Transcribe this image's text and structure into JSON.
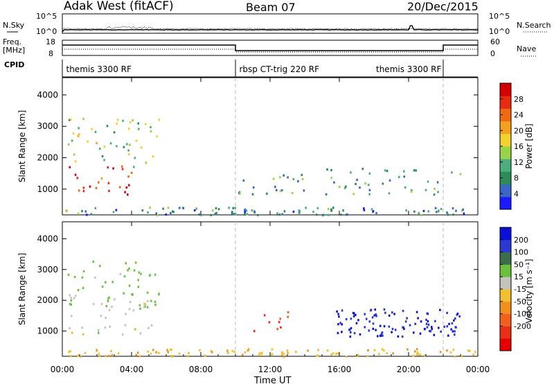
{
  "header": {
    "radar": "Adak West (fitACF)",
    "beam": "Beam 07",
    "date": "20/Dec/2015"
  },
  "noise_panel": {
    "left_label": "N.Sky",
    "right_label": "N.Search",
    "ticks": [
      "10^5",
      "10^0"
    ],
    "ylim_log10": [
      0,
      5
    ]
  },
  "freq_panel": {
    "left_label_1": "Freq.",
    "left_label_2": "[MHz]",
    "right_label": "Nave",
    "left_ticks": [
      18,
      8
    ],
    "right_ticks": [
      60,
      0
    ]
  },
  "cpid": {
    "label": "CPID",
    "segments": [
      {
        "name": "themis 3300 RF",
        "start": "00:00",
        "end": "10:00"
      },
      {
        "name": "rbsp CT-trig 220 RF",
        "start": "10:00",
        "end": "22:00"
      },
      {
        "name": "themis 3300 RF",
        "start": "22:00",
        "end": "24:00"
      }
    ],
    "label_positions_h": [
      0.1,
      10.1,
      18.0
    ]
  },
  "chart_data": [
    {
      "type": "heatmap",
      "title": "Power",
      "ylabel": "Slant Range [km]",
      "ylim": [
        180,
        4550
      ],
      "yticks": [
        1000,
        2000,
        3000,
        4000
      ],
      "colorbar": {
        "label": "Power [dB]",
        "ticks": [
          4,
          8,
          12,
          16,
          20,
          24,
          28
        ],
        "range": [
          0,
          32
        ],
        "colors": [
          "#1a1aff",
          "#3a66c4",
          "#2e8b57",
          "#4cae7c",
          "#9ad24a",
          "#f2d22e",
          "#f2a01e",
          "#f06a14",
          "#e82a12",
          "#d40000"
        ]
      },
      "regions": [
        {
          "t": [
            0.3,
            4.2
          ],
          "r": [
            780,
            1850
          ],
          "value": 27
        },
        {
          "t": [
            0.3,
            5.6
          ],
          "r": [
            1700,
            3300
          ],
          "value": 14
        },
        {
          "t": [
            10.0,
            23.0
          ],
          "r": [
            850,
            1700
          ],
          "value": 10
        },
        {
          "t": [
            0.0,
            24.0
          ],
          "r": [
            200,
            450
          ],
          "value": 8
        }
      ]
    },
    {
      "type": "heatmap",
      "title": "Velocity",
      "xlabel": "Time UT",
      "ylabel": "Slant Range [km]",
      "ylim": [
        180,
        4550
      ],
      "yticks": [
        1000,
        2000,
        3000,
        4000
      ],
      "xticks": [
        "00:00",
        "04:00",
        "08:00",
        "12:00",
        "16:00",
        "20:00",
        "00:00"
      ],
      "xlim_hours": [
        0,
        24
      ],
      "colorbar": {
        "label": "Velocity [m s⁻¹]",
        "ticks": [
          200,
          100,
          50,
          15,
          -15,
          -50,
          -100,
          -200
        ],
        "colors": [
          "#0a10d8",
          "#2a3ad0",
          "#3a6e4a",
          "#6cc040",
          "#c4c4bc",
          "#f0c030",
          "#f09020",
          "#f06020",
          "#e83018",
          "#e80000"
        ]
      },
      "regions": [
        {
          "t": [
            0.3,
            5.2
          ],
          "r": [
            900,
            2200
          ],
          "value": 0
        },
        {
          "t": [
            0.3,
            5.6
          ],
          "r": [
            1700,
            3300
          ],
          "value": 30
        },
        {
          "t": [
            11.0,
            13.2
          ],
          "r": [
            900,
            1650
          ],
          "value": -200
        },
        {
          "t": [
            15.8,
            23.0
          ],
          "r": [
            850,
            1750
          ],
          "value": 200
        },
        {
          "t": [
            0.0,
            24.0
          ],
          "r": [
            200,
            450
          ],
          "value": -40
        }
      ]
    }
  ]
}
